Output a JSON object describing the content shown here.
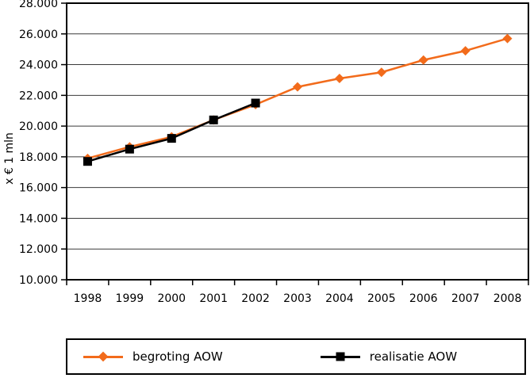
{
  "figure": {
    "background": "#ffffff"
  },
  "chart_data": {
    "type": "line",
    "title": "",
    "xlabel": "",
    "ylabel": "x € 1 mln",
    "categories": [
      "1998",
      "1999",
      "2000",
      "2001",
      "2002",
      "2003",
      "2004",
      "2005",
      "2006",
      "2007",
      "2008"
    ],
    "ylim": [
      10000,
      28000
    ],
    "ytick_values": [
      28000,
      26000,
      24000,
      22000,
      20000,
      18000,
      16000,
      14000,
      12000,
      10000
    ],
    "ytick_labels": [
      "28.000",
      "26.000",
      "24.000",
      "22.000",
      "20.000",
      "18.000",
      "16.000",
      "14.000",
      "12.000",
      "10.000"
    ],
    "grid": "horizontal",
    "grid_color": "#3a3a3a",
    "axis_color": "#000000",
    "legend_position": "bottom",
    "series": [
      {
        "name": "begroting AOW",
        "color": "#F26B1B",
        "marker": "diamond",
        "values": [
          17900,
          18650,
          19300,
          20400,
          21400,
          22550,
          23100,
          23500,
          24300,
          24900,
          25700
        ]
      },
      {
        "name": "realisatie AOW",
        "color": "#000000",
        "marker": "square",
        "values": [
          17700,
          18500,
          19200,
          20400,
          21500,
          null,
          null,
          null,
          null,
          null,
          null
        ]
      }
    ]
  }
}
